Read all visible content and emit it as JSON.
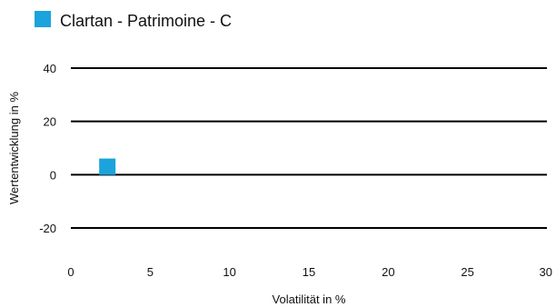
{
  "chart_data": {
    "type": "scatter",
    "xlabel": "Volatilität in %",
    "ylabel": "Wertentwicklung in %",
    "xlim": [
      0,
      30
    ],
    "ylim": [
      -30,
      45
    ],
    "x_ticks": [
      0,
      5,
      10,
      15,
      20,
      25,
      30
    ],
    "y_ticks": [
      -20,
      0,
      20,
      40
    ],
    "grid": "horizontal",
    "legend_position": "top-left",
    "series": [
      {
        "name": "Clartan - Patrimoine - C",
        "color": "#1aa3dc",
        "marker": "square",
        "points": [
          {
            "x": 2.3,
            "y": 3
          }
        ]
      }
    ]
  }
}
